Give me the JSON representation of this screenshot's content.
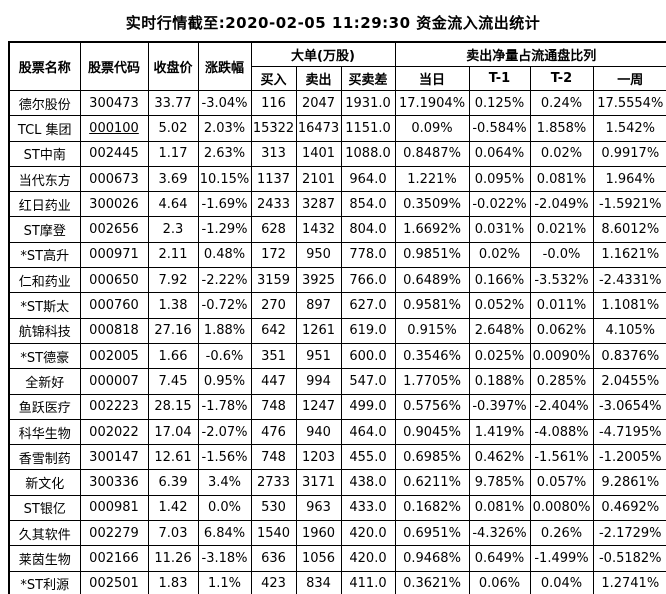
{
  "title": "实时行情截至:2020-02-05 11:29:30 资金流入流出统计",
  "colors": {
    "link_blue": "#1b5c96",
    "border": "#000000",
    "text": "#000000",
    "background": "#ffffff"
  },
  "table": {
    "header": {
      "stock_name": "股票名称",
      "stock_code": "股票代码",
      "close_price": "收盘价",
      "change_pct": "涨跌幅",
      "big_order_group": "大单(万股)",
      "buy": "买入",
      "sell": "卖出",
      "buy_sell_diff": "买卖差",
      "net_sell_ratio_group": "卖出净量占流通盘比列",
      "day": "当日",
      "t1": "T-1",
      "t2": "T-2",
      "week": "一周"
    },
    "rows": [
      {
        "name": "德尔股份",
        "code": "300473",
        "code_underlined": false,
        "close": "33.77",
        "chg": "-3.04%",
        "buy": "116",
        "sell": "2047",
        "diff": "1931.0",
        "day": "17.1904%",
        "t1": "0.125%",
        "t2": "0.24%",
        "week": "17.5554%"
      },
      {
        "name": "TCL 集团",
        "code": "000100",
        "code_underlined": true,
        "close": "5.02",
        "chg": "2.03%",
        "buy": "15322",
        "sell": "16473",
        "diff": "1151.0",
        "day": "0.09%",
        "t1": "-0.584%",
        "t2": "1.858%",
        "week": "1.542%"
      },
      {
        "name": "ST中南",
        "code": "002445",
        "code_underlined": false,
        "close": "1.17",
        "chg": "2.63%",
        "buy": "313",
        "sell": "1401",
        "diff": "1088.0",
        "day": "0.8487%",
        "t1": "0.064%",
        "t2": "0.02%",
        "week": "0.9917%"
      },
      {
        "name": "当代东方",
        "code": "000673",
        "code_underlined": false,
        "close": "3.69",
        "chg": "10.15%",
        "buy": "1137",
        "sell": "2101",
        "diff": "964.0",
        "day": "1.221%",
        "t1": "0.095%",
        "t2": "0.081%",
        "week": "1.964%"
      },
      {
        "name": "红日药业",
        "code": "300026",
        "code_underlined": false,
        "close": "4.64",
        "chg": "-1.69%",
        "buy": "2433",
        "sell": "3287",
        "diff": "854.0",
        "day": "0.3509%",
        "t1": "-0.022%",
        "t2": "-2.049%",
        "week": "-1.5921%"
      },
      {
        "name": "ST摩登",
        "code": "002656",
        "code_underlined": false,
        "close": "2.3",
        "chg": "-1.29%",
        "buy": "628",
        "sell": "1432",
        "diff": "804.0",
        "day": "1.6692%",
        "t1": "0.031%",
        "t2": "0.021%",
        "week": "8.6012%"
      },
      {
        "name": "*ST高升",
        "code": "000971",
        "code_underlined": false,
        "close": "2.11",
        "chg": "0.48%",
        "buy": "172",
        "sell": "950",
        "diff": "778.0",
        "day": "0.9851%",
        "t1": "0.02%",
        "t2": "-0.0%",
        "week": "1.1621%"
      },
      {
        "name": "仁和药业",
        "code": "000650",
        "code_underlined": false,
        "close": "7.92",
        "chg": "-2.22%",
        "buy": "3159",
        "sell": "3925",
        "diff": "766.0",
        "day": "0.6489%",
        "t1": "0.166%",
        "t2": "-3.532%",
        "week": "-2.4331%"
      },
      {
        "name": "*ST斯太",
        "code": "000760",
        "code_underlined": false,
        "close": "1.38",
        "chg": "-0.72%",
        "buy": "270",
        "sell": "897",
        "diff": "627.0",
        "day": "0.9581%",
        "t1": "0.052%",
        "t2": "0.011%",
        "week": "1.1081%"
      },
      {
        "name": "航锦科技",
        "code": "000818",
        "code_underlined": false,
        "close": "27.16",
        "chg": "1.88%",
        "buy": "642",
        "sell": "1261",
        "diff": "619.0",
        "day": "0.915%",
        "t1": "2.648%",
        "t2": "0.062%",
        "week": "4.105%"
      },
      {
        "name": "*ST德豪",
        "code": "002005",
        "code_underlined": false,
        "close": "1.66",
        "chg": "-0.6%",
        "buy": "351",
        "sell": "951",
        "diff": "600.0",
        "day": "0.3546%",
        "t1": "0.025%",
        "t2": "0.0090%",
        "week": "0.8376%"
      },
      {
        "name": "全新好",
        "code": "000007",
        "code_underlined": false,
        "close": "7.45",
        "chg": "0.95%",
        "buy": "447",
        "sell": "994",
        "diff": "547.0",
        "day": "1.7705%",
        "t1": "0.188%",
        "t2": "0.285%",
        "week": "2.0455%"
      },
      {
        "name": "鱼跃医疗",
        "code": "002223",
        "code_underlined": false,
        "close": "28.15",
        "chg": "-1.78%",
        "buy": "748",
        "sell": "1247",
        "diff": "499.0",
        "day": "0.5756%",
        "t1": "-0.397%",
        "t2": "-2.404%",
        "week": "-3.0654%"
      },
      {
        "name": "科华生物",
        "code": "002022",
        "code_underlined": false,
        "close": "17.04",
        "chg": "-2.07%",
        "buy": "476",
        "sell": "940",
        "diff": "464.0",
        "day": "0.9045%",
        "t1": "1.419%",
        "t2": "-4.088%",
        "week": "-4.7195%"
      },
      {
        "name": "香雪制药",
        "code": "300147",
        "code_underlined": false,
        "close": "12.61",
        "chg": "-1.56%",
        "buy": "748",
        "sell": "1203",
        "diff": "455.0",
        "day": "0.6985%",
        "t1": "0.462%",
        "t2": "-1.561%",
        "week": "-1.2005%"
      },
      {
        "name": "新文化",
        "code": "300336",
        "code_underlined": false,
        "close": "6.39",
        "chg": "3.4%",
        "buy": "2733",
        "sell": "3171",
        "diff": "438.0",
        "day": "0.6211%",
        "t1": "9.785%",
        "t2": "0.057%",
        "week": "9.2861%"
      },
      {
        "name": "ST银亿",
        "code": "000981",
        "code_underlined": false,
        "close": "1.42",
        "chg": "0.0%",
        "buy": "530",
        "sell": "963",
        "diff": "433.0",
        "day": "0.1682%",
        "t1": "0.081%",
        "t2": "0.0080%",
        "week": "0.4692%"
      },
      {
        "name": "久其软件",
        "code": "002279",
        "code_underlined": false,
        "close": "7.03",
        "chg": "6.84%",
        "buy": "1540",
        "sell": "1960",
        "diff": "420.0",
        "day": "0.6951%",
        "t1": "-4.326%",
        "t2": "0.26%",
        "week": "-2.1729%"
      },
      {
        "name": "莱茵生物",
        "code": "002166",
        "code_underlined": false,
        "close": "11.26",
        "chg": "-3.18%",
        "buy": "636",
        "sell": "1056",
        "diff": "420.0",
        "day": "0.9468%",
        "t1": "0.649%",
        "t2": "-1.499%",
        "week": "-0.5182%"
      },
      {
        "name": "*ST利源",
        "code": "002501",
        "code_underlined": false,
        "close": "1.83",
        "chg": "1.1%",
        "buy": "423",
        "sell": "834",
        "diff": "411.0",
        "day": "0.3621%",
        "t1": "0.06%",
        "t2": "0.04%",
        "week": "1.2741%"
      }
    ]
  }
}
